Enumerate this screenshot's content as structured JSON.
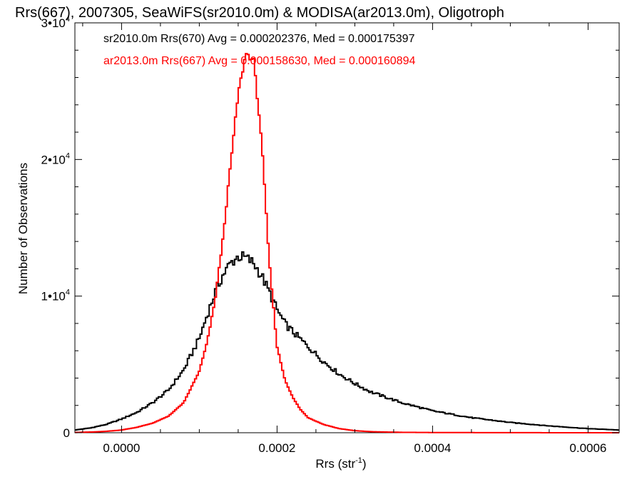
{
  "chart_data": {
    "type": "histogram",
    "title": "Rrs(667), 2007305, SeaWiFS(sr2010.0m) & MODISA(ar2013.0m), Oligotroph",
    "xlabel": "Rrs (str",
    "xlabel_sup": "-1",
    "xlabel_end": ")",
    "ylabel": "Number of Observations",
    "xlim": [
      -6e-05,
      0.00064
    ],
    "ylim": [
      0,
      30000
    ],
    "x_ticks": [
      {
        "value": 0.0,
        "label": "0.0000"
      },
      {
        "value": 0.0002,
        "label": "0.0002"
      },
      {
        "value": 0.0004,
        "label": "0.0004"
      },
      {
        "value": 0.0006,
        "label": "0.0006"
      }
    ],
    "y_ticks": [
      {
        "value": 0,
        "base": "0",
        "exp": ""
      },
      {
        "value": 10000,
        "base": "1•10",
        "exp": "4"
      },
      {
        "value": 20000,
        "base": "2•10",
        "exp": "4"
      },
      {
        "value": 30000,
        "base": "3•10",
        "exp": "4"
      }
    ],
    "series": [
      {
        "name": "sr2010.0m Rrs(670)",
        "legend": "sr2010.0m Rrs(670) Avg = 0.000202376, Med = 0.000175397",
        "color": "#000000",
        "x": [
          -6e-05,
          -4e-05,
          -2e-05,
          0.0,
          2e-05,
          4e-05,
          6e-05,
          8e-05,
          0.0001,
          0.00011,
          0.00012,
          0.00013,
          0.00014,
          0.00015,
          0.00016,
          0.00017,
          0.00018,
          0.00019,
          0.0002,
          0.00021,
          0.00022,
          0.00024,
          0.00026,
          0.00028,
          0.0003,
          0.00032,
          0.00034,
          0.00036,
          0.00038,
          0.0004,
          0.00045,
          0.0005,
          0.00055,
          0.0006,
          0.00064
        ],
        "values": [
          200,
          350,
          600,
          1000,
          1500,
          2200,
          3100,
          4600,
          6900,
          8600,
          10200,
          11500,
          12400,
          12900,
          12800,
          12400,
          11500,
          10300,
          9000,
          8000,
          7400,
          6300,
          5200,
          4300,
          3600,
          3000,
          2600,
          2200,
          1900,
          1600,
          1100,
          750,
          500,
          300,
          200
        ]
      },
      {
        "name": "ar2013.0m Rrs(667)",
        "legend": "ar2013.0m Rrs(667) Avg = 0.000158630, Med = 0.000160894",
        "color": "#ff0000",
        "x": [
          -6e-05,
          -4e-05,
          -2e-05,
          0.0,
          2e-05,
          4e-05,
          6e-05,
          8e-05,
          0.0001,
          0.00011,
          0.00012,
          0.00013,
          0.00014,
          0.00015,
          0.00016,
          0.00017,
          0.00018,
          0.00019,
          0.0002,
          0.00021,
          0.00022,
          0.00023,
          0.00024,
          0.00026,
          0.00028,
          0.0003,
          0.00032,
          0.00034,
          0.00036,
          0.0004,
          0.00045,
          0.0005,
          0.00055,
          0.0006,
          0.00064
        ],
        "values": [
          20,
          50,
          100,
          200,
          400,
          700,
          1200,
          2200,
          4500,
          6600,
          9600,
          14000,
          19500,
          24800,
          27800,
          27200,
          21500,
          12500,
          6300,
          3900,
          2600,
          1700,
          1100,
          600,
          300,
          150,
          80,
          50,
          30,
          15,
          10,
          5,
          3,
          2,
          0
        ]
      }
    ],
    "grid": false,
    "legend_position": "top-left"
  }
}
